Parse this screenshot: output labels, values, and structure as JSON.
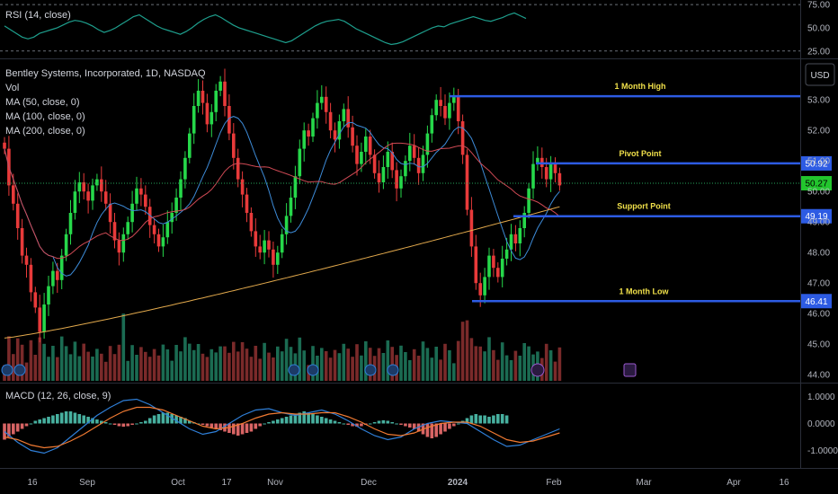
{
  "symbol": {
    "title": "Bentley Systems, Incorporated, 1D, NASDAQ",
    "vol_label": "Vol",
    "ma_labels": [
      "MA (50, close, 0)",
      "MA (100, close, 0)",
      "MA (200, close, 0)"
    ]
  },
  "currency_button": "USD",
  "colors": {
    "up": "#26d84a",
    "down": "#e83a3a",
    "ma50": "#3d8bd8",
    "ma100": "#d04a55",
    "ma200": "#e2a94c",
    "level_line": "#2d5be3",
    "level_text": "#f0e04a",
    "rsi": "#1e9f8d",
    "macd": "#2f7fd8",
    "signal": "#f07a32",
    "hist_up": "#4fc3b0",
    "hist_down": "#ef6f6f"
  },
  "chart_data": [
    {
      "type": "candlestick",
      "ylim": [
        43.8,
        54.3
      ],
      "y_ticks": [
        "53.00",
        "52.00",
        "51.00",
        "50.00",
        "49.00",
        "48.00",
        "47.00",
        "46.00",
        "45.00",
        "44.00"
      ],
      "x_ticks": [
        "16",
        "Sep",
        "Oct",
        "17",
        "Nov",
        "Dec",
        "2024",
        "Feb",
        "Mar",
        "Apr",
        "16"
      ],
      "levels": [
        {
          "label": "1 Month High",
          "value": 53.12,
          "tag": ""
        },
        {
          "label": "Pivot Point",
          "value": 50.92,
          "tag": "50.92"
        },
        {
          "label": "Support Point",
          "value": 49.19,
          "tag": "49.19"
        },
        {
          "label": "1 Month Low",
          "value": 46.41,
          "tag": "46.41"
        }
      ],
      "last_price": "50.27",
      "candles": [
        [
          51.6,
          51.4
        ],
        [
          51.4,
          50.2
        ],
        [
          50.2,
          49.6
        ],
        [
          49.6,
          48.8
        ],
        [
          48.8,
          47.9
        ],
        [
          47.9,
          47.6
        ],
        [
          47.6,
          46.7
        ],
        [
          46.7,
          46.2
        ],
        [
          46.2,
          45.4
        ],
        [
          45.4,
          46.3
        ],
        [
          46.3,
          46.9
        ],
        [
          46.9,
          47.4
        ],
        [
          47.4,
          47.1
        ],
        [
          47.1,
          47.9
        ],
        [
          47.9,
          48.6
        ],
        [
          48.6,
          49.3
        ],
        [
          49.3,
          50.0
        ],
        [
          50.0,
          50.3
        ],
        [
          50.3,
          50.0
        ],
        [
          50.0,
          49.7
        ],
        [
          49.7,
          50.2
        ],
        [
          50.2,
          50.4
        ],
        [
          50.4,
          50.0
        ],
        [
          50.0,
          49.6
        ],
        [
          49.6,
          49.0
        ],
        [
          49.0,
          48.4
        ],
        [
          48.4,
          48.0
        ],
        [
          48.0,
          48.6
        ],
        [
          48.6,
          49.0
        ],
        [
          49.0,
          49.6
        ],
        [
          49.6,
          50.1
        ],
        [
          50.1,
          49.9
        ],
        [
          49.9,
          49.5
        ],
        [
          49.5,
          48.9
        ],
        [
          48.9,
          48.6
        ],
        [
          48.6,
          48.2
        ],
        [
          48.2,
          48.5
        ],
        [
          48.5,
          49.0
        ],
        [
          49.0,
          49.3
        ],
        [
          49.3,
          49.8
        ],
        [
          49.8,
          50.4
        ],
        [
          50.4,
          51.1
        ],
        [
          51.1,
          51.9
        ],
        [
          51.9,
          52.8
        ],
        [
          52.8,
          53.3
        ],
        [
          53.3,
          52.9
        ],
        [
          52.9,
          52.2
        ],
        [
          52.2,
          52.6
        ],
        [
          52.6,
          53.3
        ],
        [
          53.3,
          53.6
        ],
        [
          53.6,
          52.8
        ],
        [
          52.8,
          51.9
        ],
        [
          51.9,
          51.1
        ],
        [
          51.1,
          50.4
        ],
        [
          50.4,
          49.9
        ],
        [
          49.9,
          49.3
        ],
        [
          49.3,
          48.7
        ],
        [
          48.7,
          48.2
        ],
        [
          48.2,
          48.0
        ],
        [
          48.0,
          48.4
        ],
        [
          48.4,
          48.1
        ],
        [
          48.1,
          47.6
        ],
        [
          47.6,
          48.0
        ],
        [
          48.0,
          48.6
        ],
        [
          48.6,
          49.2
        ],
        [
          49.2,
          49.8
        ],
        [
          49.8,
          50.5
        ],
        [
          50.5,
          51.4
        ],
        [
          51.4,
          52.0
        ],
        [
          52.0,
          51.8
        ],
        [
          51.8,
          52.4
        ],
        [
          52.4,
          52.9
        ],
        [
          52.9,
          53.1
        ],
        [
          53.1,
          52.6
        ],
        [
          52.6,
          52.0
        ],
        [
          52.0,
          51.7
        ],
        [
          51.7,
          52.3
        ],
        [
          52.3,
          52.7
        ],
        [
          52.7,
          52.1
        ],
        [
          52.1,
          51.5
        ],
        [
          51.5,
          50.9
        ],
        [
          50.9,
          51.3
        ],
        [
          51.3,
          51.8
        ],
        [
          51.8,
          51.2
        ],
        [
          51.2,
          50.6
        ],
        [
          50.6,
          50.3
        ],
        [
          50.3,
          50.8
        ],
        [
          50.8,
          51.3
        ],
        [
          51.3,
          50.7
        ],
        [
          50.7,
          50.1
        ],
        [
          50.1,
          50.5
        ],
        [
          50.5,
          51.0
        ],
        [
          51.0,
          51.5
        ],
        [
          51.5,
          51.1
        ],
        [
          51.1,
          50.6
        ],
        [
          50.6,
          51.2
        ],
        [
          51.2,
          51.9
        ],
        [
          51.9,
          52.5
        ],
        [
          52.5,
          53.0
        ],
        [
          53.0,
          52.8
        ],
        [
          52.8,
          52.4
        ],
        [
          52.4,
          52.9
        ],
        [
          52.9,
          53.1
        ],
        [
          53.1,
          52.3
        ],
        [
          52.3,
          51.2
        ],
        [
          51.2,
          49.4
        ],
        [
          49.4,
          48.2
        ],
        [
          48.2,
          47.0
        ],
        [
          47.0,
          46.6
        ],
        [
          46.6,
          47.2
        ],
        [
          47.2,
          47.9
        ],
        [
          47.9,
          47.5
        ],
        [
          47.5,
          47.2
        ],
        [
          47.2,
          47.8
        ],
        [
          47.8,
          48.1
        ],
        [
          48.1,
          48.6
        ],
        [
          48.6,
          48.3
        ],
        [
          48.3,
          48.8
        ],
        [
          48.8,
          49.3
        ],
        [
          49.3,
          50.1
        ],
        [
          50.1,
          50.9
        ],
        [
          50.9,
          51.1
        ],
        [
          51.1,
          50.8
        ],
        [
          50.8,
          50.4
        ],
        [
          50.4,
          50.9
        ],
        [
          50.9,
          50.6
        ],
        [
          50.6,
          50.2
        ]
      ]
    },
    {
      "type": "line",
      "name": "RSI (14, close)",
      "ylim": [
        18,
        78
      ],
      "y_ticks": [
        "75.00",
        "50.00",
        "25.00"
      ],
      "values": [
        52,
        48,
        44,
        40,
        38,
        40,
        44,
        46,
        48,
        50,
        53,
        56,
        58,
        57,
        55,
        52,
        48,
        45,
        47,
        50,
        54,
        58,
        62,
        64,
        60,
        56,
        52,
        49,
        47,
        45,
        43,
        46,
        50,
        55,
        59,
        62,
        64,
        61,
        57,
        53,
        50,
        48,
        46,
        44,
        42,
        40,
        38,
        36,
        34,
        36,
        40,
        44,
        48,
        52,
        55,
        57,
        58,
        59,
        57,
        53,
        49,
        46,
        43,
        40,
        37,
        34,
        32,
        33,
        35,
        38,
        41,
        44,
        47,
        50,
        52,
        51,
        54,
        56,
        58,
        60,
        62,
        60,
        58,
        57,
        59,
        61,
        64,
        66,
        63,
        60
      ]
    },
    {
      "type": "bar",
      "name": "MACD (12, 26, close, 9)",
      "ylim": [
        -1.55,
        1.45
      ],
      "y_ticks": [
        "1.0000",
        "0.0000",
        "-1.0000"
      ],
      "histogram": [
        -0.6,
        -0.5,
        -0.4,
        -0.3,
        -0.2,
        -0.1,
        0.0,
        0.1,
        0.15,
        0.2,
        0.25,
        0.3,
        0.35,
        0.4,
        0.45,
        0.45,
        0.4,
        0.35,
        0.3,
        0.25,
        0.2,
        0.15,
        0.1,
        0.05,
        0.0,
        -0.05,
        -0.1,
        -0.12,
        -0.1,
        -0.05,
        0.0,
        0.05,
        0.1,
        0.2,
        0.3,
        0.35,
        0.4,
        0.4,
        0.35,
        0.3,
        0.25,
        0.2,
        0.1,
        0.05,
        0.0,
        -0.05,
        -0.1,
        -0.15,
        -0.2,
        -0.25,
        -0.3,
        -0.35,
        -0.4,
        -0.45,
        -0.4,
        -0.35,
        -0.3,
        -0.2,
        -0.1,
        0.0,
        0.05,
        0.1,
        0.15,
        0.2,
        0.25,
        0.3,
        0.35,
        0.4,
        0.45,
        0.4,
        0.35,
        0.3,
        0.25,
        0.2,
        0.15,
        0.1,
        0.05,
        0.0,
        -0.05,
        -0.1,
        -0.12,
        -0.1,
        -0.05,
        0.0,
        0.05,
        0.1,
        0.12,
        0.1,
        0.05,
        0.0,
        -0.05,
        -0.1,
        -0.15,
        -0.2,
        -0.3,
        -0.4,
        -0.5,
        -0.55,
        -0.5,
        -0.4,
        -0.3,
        -0.2,
        -0.1,
        0.0,
        0.1,
        0.2,
        0.3,
        0.35,
        0.3,
        0.3,
        0.25,
        0.3,
        0.35,
        0.35,
        0.3
      ],
      "macd": [
        -0.3,
        -0.7,
        -1.0,
        -1.1,
        -0.9,
        -0.5,
        -0.1,
        0.3,
        0.6,
        0.85,
        0.9,
        0.7,
        0.4,
        0.1,
        -0.2,
        -0.4,
        -0.3,
        0.0,
        0.3,
        0.5,
        0.55,
        0.4,
        0.3,
        0.4,
        0.5,
        0.35,
        0.1,
        -0.2,
        -0.45,
        -0.6,
        -0.5,
        -0.2,
        0.0,
        0.1,
        0.05,
        0.0,
        -0.3,
        -0.6,
        -0.85,
        -0.8,
        -0.6,
        -0.4,
        -0.2
      ],
      "signal": [
        -0.5,
        -0.6,
        -0.8,
        -0.9,
        -0.85,
        -0.65,
        -0.4,
        -0.1,
        0.2,
        0.45,
        0.6,
        0.6,
        0.5,
        0.3,
        0.1,
        -0.1,
        -0.2,
        -0.15,
        0.0,
        0.2,
        0.35,
        0.4,
        0.35,
        0.35,
        0.4,
        0.4,
        0.25,
        0.05,
        -0.2,
        -0.4,
        -0.45,
        -0.35,
        -0.15,
        0.0,
        0.05,
        0.05,
        -0.1,
        -0.35,
        -0.6,
        -0.7,
        -0.65,
        -0.5,
        -0.35
      ]
    }
  ]
}
